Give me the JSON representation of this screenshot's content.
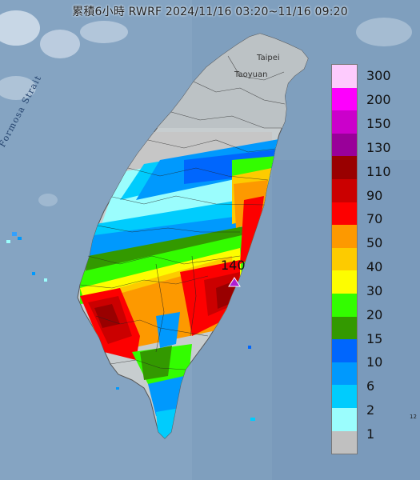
{
  "title": "累積6小時 RWRF 2024/11/16 03:20~11/16 09:20",
  "map_labels": {
    "strait": "Formosa Strait",
    "taipei": "Taipei",
    "taoyuan": "Taoyuan"
  },
  "max_marker": {
    "value": "140",
    "icon": "triangle-icon",
    "color": "#b01fd0"
  },
  "legend": {
    "levels": [
      {
        "label": "300",
        "color": "#fdcbfd"
      },
      {
        "label": "200",
        "color": "#fd00fd"
      },
      {
        "label": "150",
        "color": "#cb00cb"
      },
      {
        "label": "130",
        "color": "#990099"
      },
      {
        "label": "110",
        "color": "#990000"
      },
      {
        "label": "90",
        "color": "#cb0000"
      },
      {
        "label": "70",
        "color": "#fd0000"
      },
      {
        "label": "50",
        "color": "#fd9900"
      },
      {
        "label": "40",
        "color": "#fdcb00"
      },
      {
        "label": "30",
        "color": "#fdfd00"
      },
      {
        "label": "20",
        "color": "#33fd00"
      },
      {
        "label": "15",
        "color": "#339900"
      },
      {
        "label": "10",
        "color": "#0066fd"
      },
      {
        "label": "6",
        "color": "#0099fd"
      },
      {
        "label": "2",
        "color": "#00ccfd"
      },
      {
        "label": "1",
        "color": "#9bfdfd"
      },
      {
        "label": "",
        "color": "#c0c0c0"
      }
    ]
  }
}
